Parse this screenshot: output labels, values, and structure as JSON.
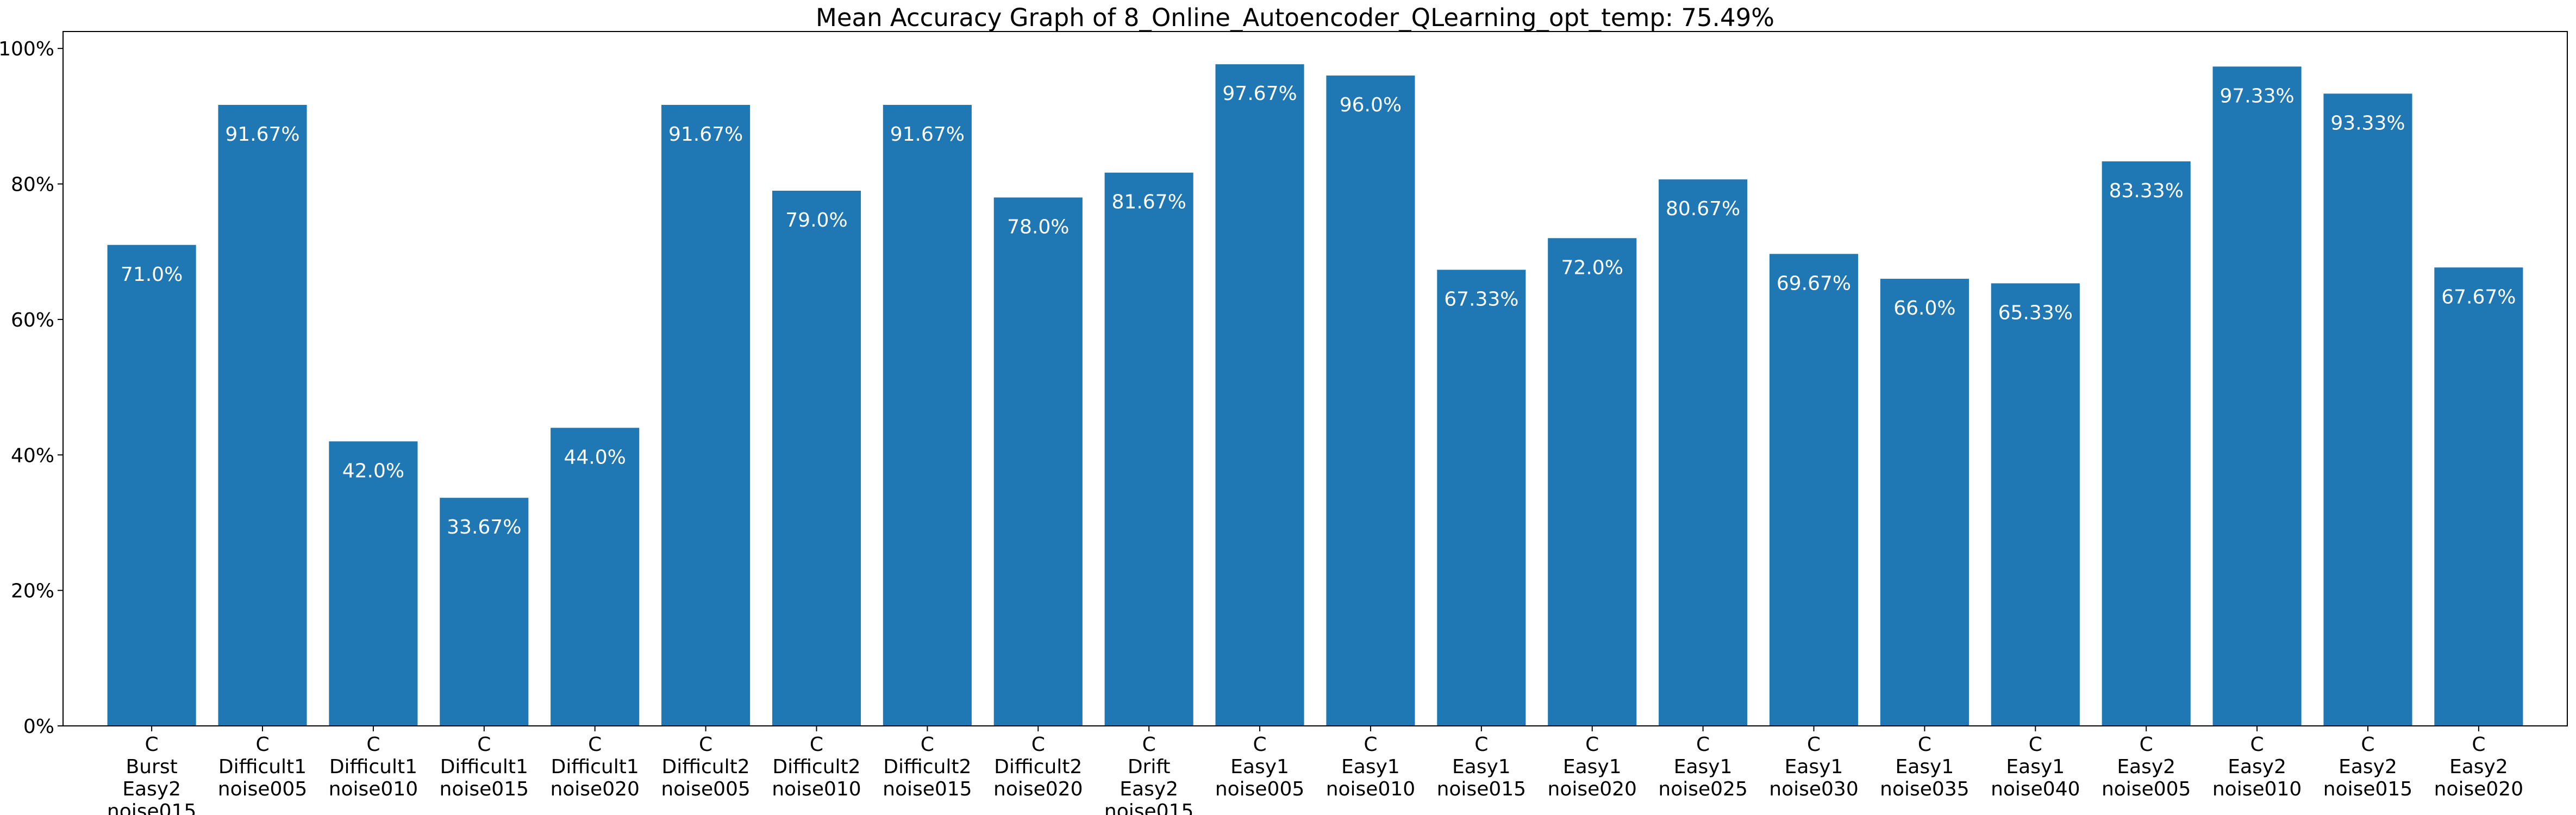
{
  "chart_data": {
    "type": "bar",
    "title": "Mean Accuracy Graph of 8_Online_Autoencoder_QLearning_opt_temp: 75.49%",
    "xlabel": "",
    "ylabel": "",
    "ylim": [
      0,
      102.5
    ],
    "yticks": [
      0,
      20,
      40,
      60,
      80,
      100
    ],
    "ytick_labels": [
      "0%",
      "20%",
      "40%",
      "60%",
      "80%",
      "100%"
    ],
    "grid": false,
    "bar_color": "#1f77b4",
    "label_color": "#ffffff",
    "categories": [
      [
        "C",
        "Burst",
        "Easy2",
        "noise015"
      ],
      [
        "C",
        "Difficult1",
        "noise005"
      ],
      [
        "C",
        "Difficult1",
        "noise010"
      ],
      [
        "C",
        "Difficult1",
        "noise015"
      ],
      [
        "C",
        "Difficult1",
        "noise020"
      ],
      [
        "C",
        "Difficult2",
        "noise005"
      ],
      [
        "C",
        "Difficult2",
        "noise010"
      ],
      [
        "C",
        "Difficult2",
        "noise015"
      ],
      [
        "C",
        "Difficult2",
        "noise020"
      ],
      [
        "C",
        "Drift",
        "Easy2",
        "noise015"
      ],
      [
        "C",
        "Easy1",
        "noise005"
      ],
      [
        "C",
        "Easy1",
        "noise010"
      ],
      [
        "C",
        "Easy1",
        "noise015"
      ],
      [
        "C",
        "Easy1",
        "noise020"
      ],
      [
        "C",
        "Easy1",
        "noise025"
      ],
      [
        "C",
        "Easy1",
        "noise030"
      ],
      [
        "C",
        "Easy1",
        "noise035"
      ],
      [
        "C",
        "Easy1",
        "noise040"
      ],
      [
        "C",
        "Easy2",
        "noise005"
      ],
      [
        "C",
        "Easy2",
        "noise010"
      ],
      [
        "C",
        "Easy2",
        "noise015"
      ],
      [
        "C",
        "Easy2",
        "noise020"
      ]
    ],
    "values": [
      71.0,
      91.67,
      42.0,
      33.67,
      44.0,
      91.67,
      79.0,
      91.67,
      78.0,
      81.67,
      97.67,
      96.0,
      67.33,
      72.0,
      80.67,
      69.67,
      66.0,
      65.33,
      83.33,
      97.33,
      93.33,
      67.67
    ],
    "data_labels": [
      "71.0%",
      "91.67%",
      "42.0%",
      "33.67%",
      "44.0%",
      "91.67%",
      "79.0%",
      "91.67%",
      "78.0%",
      "81.67%",
      "97.67%",
      "96.0%",
      "67.33%",
      "72.0%",
      "80.67%",
      "69.67%",
      "66.0%",
      "65.33%",
      "83.33%",
      "97.33%",
      "93.33%",
      "67.67%"
    ]
  }
}
